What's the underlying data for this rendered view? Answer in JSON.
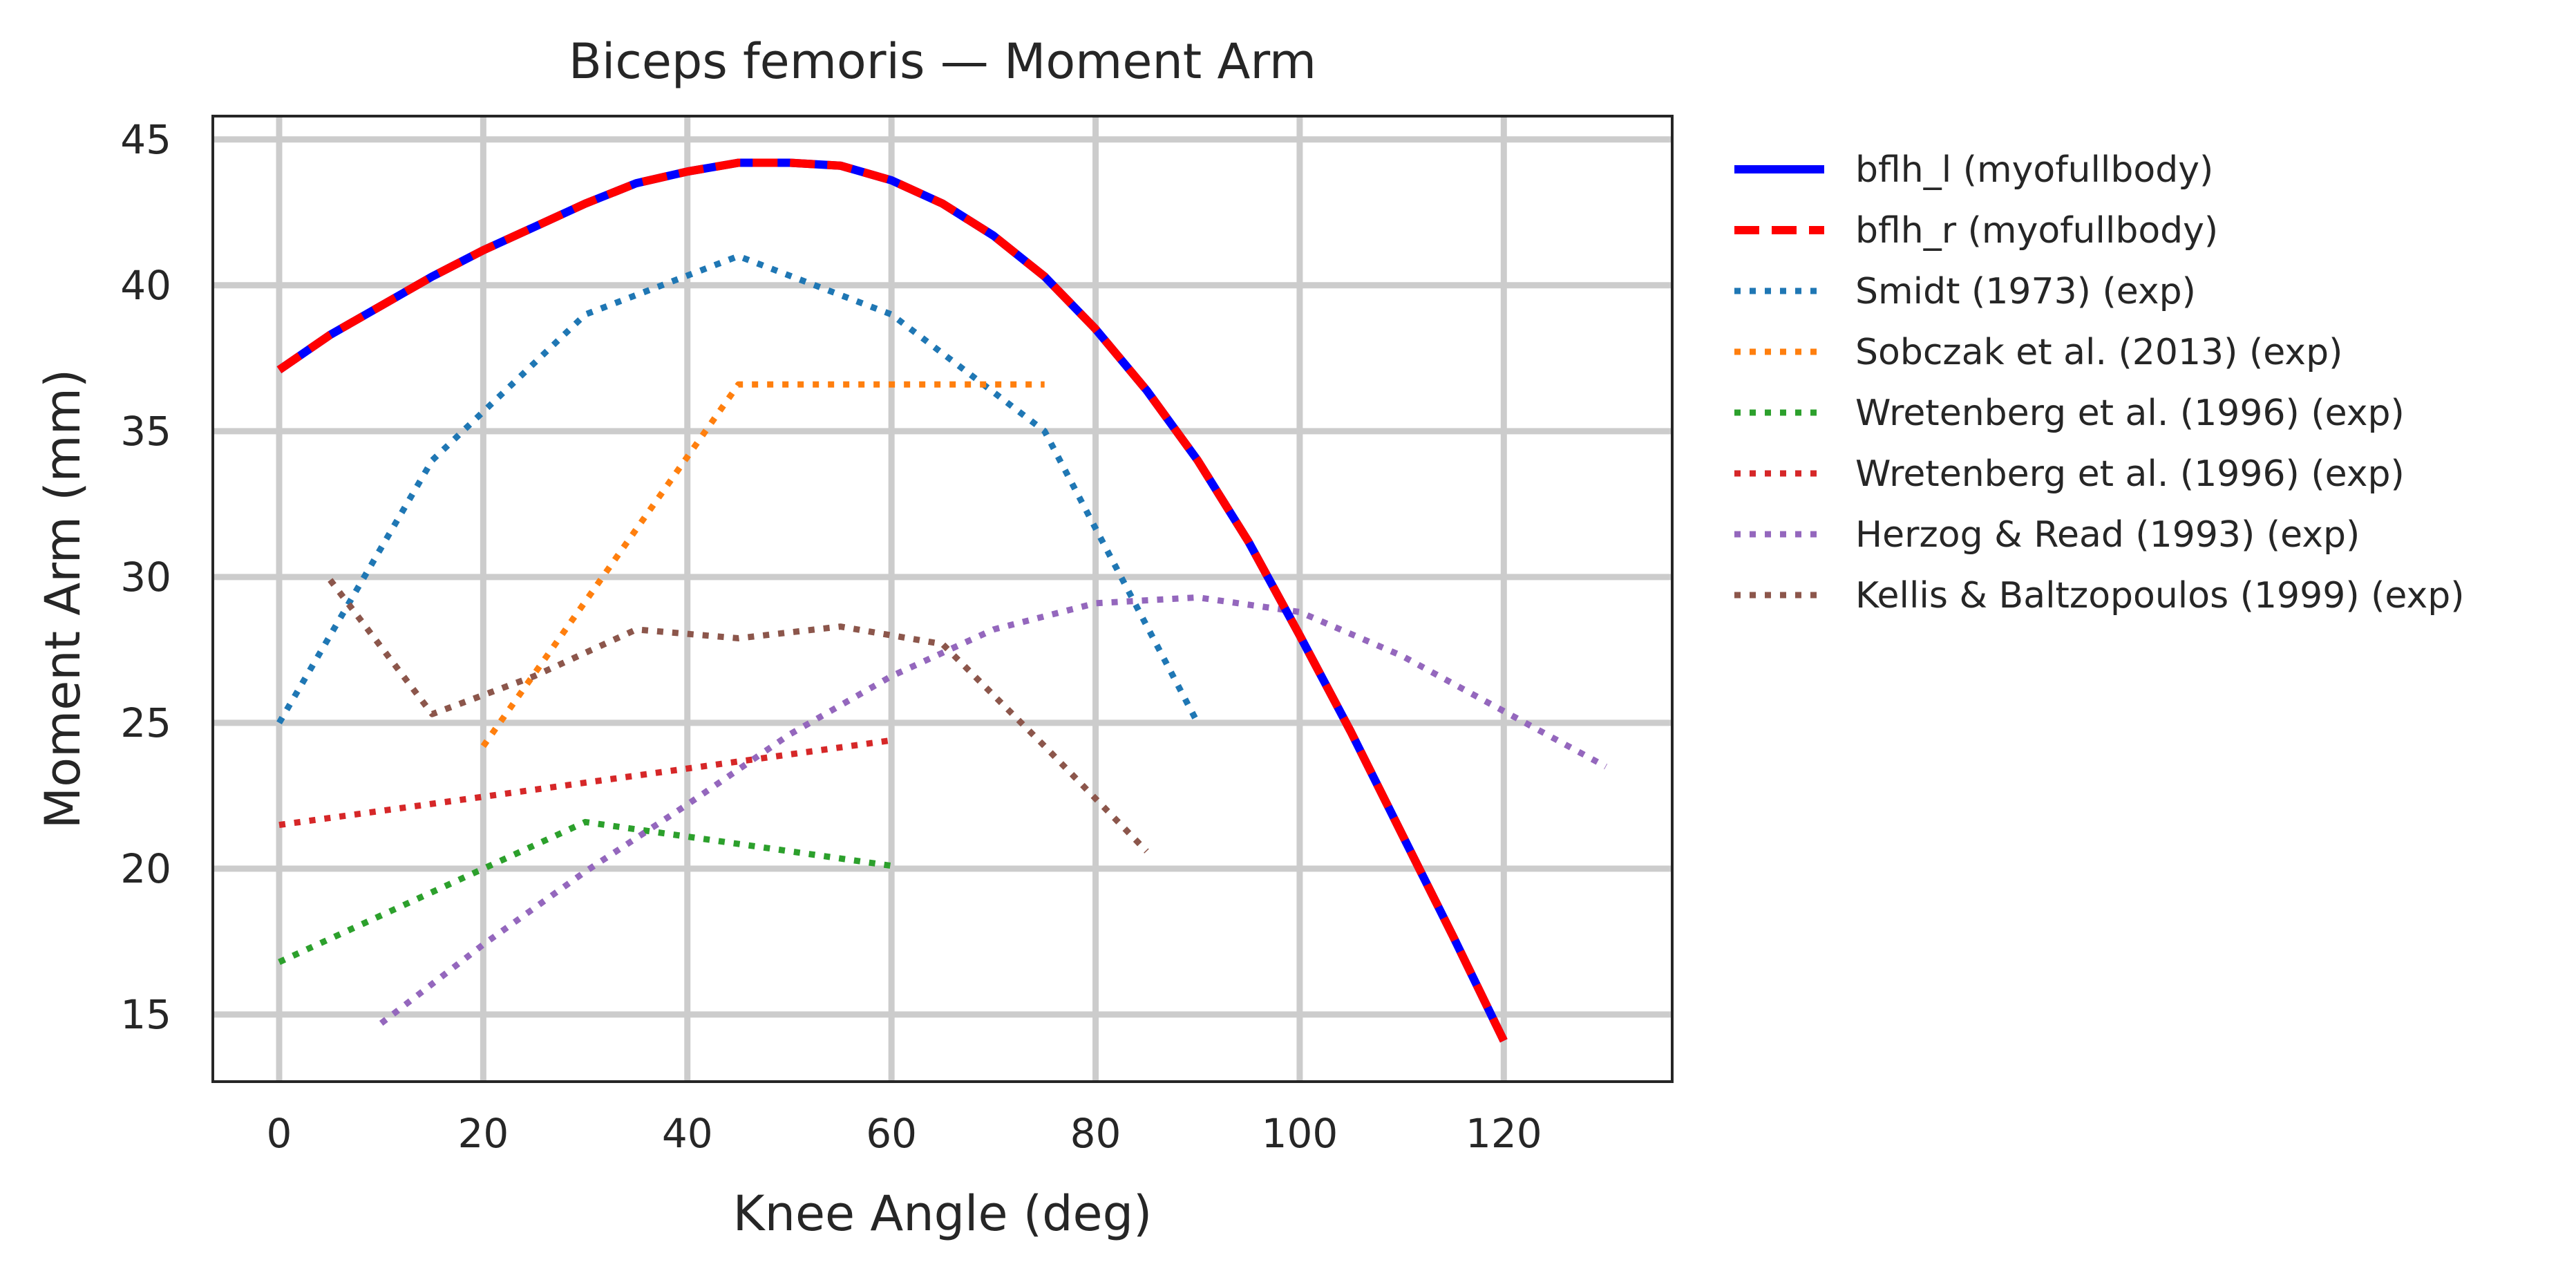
{
  "chart_data": {
    "type": "line",
    "title": "Biceps femoris — Moment Arm",
    "xlabel": "Knee Angle (deg)",
    "ylabel": "Moment Arm (mm)",
    "xlim": [
      -6.5,
      136.5
    ],
    "ylim": [
      12.7,
      45.8
    ],
    "xticks": [
      0,
      20,
      40,
      60,
      80,
      100,
      120
    ],
    "yticks": [
      15,
      20,
      25,
      30,
      35,
      40,
      45
    ],
    "grid": true,
    "legend_position": "outside-right",
    "series": [
      {
        "name": "bflh_l (myofullbody)",
        "color": "#0000ff",
        "style": "solid",
        "x": [
          0,
          5,
          10,
          15,
          20,
          25,
          30,
          35,
          40,
          45,
          50,
          55,
          60,
          65,
          70,
          75,
          80,
          85,
          90,
          95,
          100,
          105,
          110,
          115,
          120
        ],
        "y": [
          37.1,
          38.3,
          39.3,
          40.3,
          41.2,
          42.0,
          42.8,
          43.5,
          43.9,
          44.2,
          44.2,
          44.1,
          43.6,
          42.8,
          41.7,
          40.3,
          38.5,
          36.4,
          34.0,
          31.2,
          28.0,
          24.7,
          21.2,
          17.7,
          14.1
        ]
      },
      {
        "name": "bflh_r (myofullbody)",
        "color": "#ff0000",
        "style": "dashed",
        "x": [
          0,
          5,
          10,
          15,
          20,
          25,
          30,
          35,
          40,
          45,
          50,
          55,
          60,
          65,
          70,
          75,
          80,
          85,
          90,
          95,
          100,
          105,
          110,
          115,
          120
        ],
        "y": [
          37.1,
          38.3,
          39.3,
          40.3,
          41.2,
          42.0,
          42.8,
          43.5,
          43.9,
          44.2,
          44.2,
          44.1,
          43.6,
          42.8,
          41.7,
          40.3,
          38.5,
          36.4,
          34.0,
          31.2,
          28.0,
          24.7,
          21.2,
          17.7,
          14.1
        ]
      },
      {
        "name": "Smidt (1973) (exp)",
        "color": "#1f77b4",
        "style": "dotted",
        "x": [
          0,
          15,
          30,
          45,
          60,
          75,
          90
        ],
        "y": [
          25.0,
          34.0,
          39.0,
          41.0,
          39.0,
          35.0,
          25.0
        ]
      },
      {
        "name": "Sobczak et al. (2013) (exp)",
        "color": "#ff7f0e",
        "style": "dotted",
        "x": [
          20,
          45,
          75
        ],
        "y": [
          24.2,
          36.6,
          36.6
        ]
      },
      {
        "name": "Wretenberg et al. (1996) (exp)",
        "color": "#2ca02c",
        "style": "dotted",
        "x": [
          0,
          30,
          60
        ],
        "y": [
          16.8,
          21.6,
          20.1
        ]
      },
      {
        "name": "Wretenberg et al. (1996) (exp)",
        "color": "#d62728",
        "style": "dotted",
        "x": [
          0,
          60
        ],
        "y": [
          21.5,
          24.4
        ]
      },
      {
        "name": "Herzog & Read (1993) (exp)",
        "color": "#9467bd",
        "style": "dotted",
        "x": [
          10,
          20,
          30,
          40,
          50,
          60,
          70,
          80,
          90,
          100,
          110,
          120,
          130
        ],
        "y": [
          14.7,
          17.4,
          19.9,
          22.2,
          24.6,
          26.6,
          28.2,
          29.1,
          29.3,
          28.8,
          27.3,
          25.4,
          23.5
        ]
      },
      {
        "name": "Kellis & Baltzopoulos (1999) (exp)",
        "color": "#8c564b",
        "style": "dotted",
        "x": [
          5,
          15,
          25,
          35,
          45,
          55,
          65,
          75,
          85
        ],
        "y": [
          29.9,
          25.3,
          26.6,
          28.2,
          27.9,
          28.3,
          27.7,
          24.2,
          20.6
        ]
      }
    ]
  }
}
